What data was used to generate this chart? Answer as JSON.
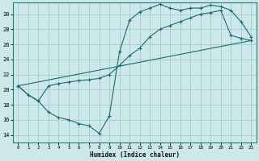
{
  "title": "",
  "xlabel": "Humidex (Indice chaleur)",
  "bg_color": "#cce8ea",
  "grid_color": "#aacfcf",
  "line_color": "#1a6b6b",
  "xlim": [
    -0.5,
    23.5
  ],
  "ylim": [
    13.0,
    31.5
  ],
  "xticks": [
    0,
    1,
    2,
    3,
    4,
    5,
    6,
    7,
    8,
    9,
    10,
    11,
    12,
    13,
    14,
    15,
    16,
    17,
    18,
    19,
    20,
    21,
    22,
    23
  ],
  "yticks": [
    14,
    16,
    18,
    20,
    22,
    24,
    26,
    28,
    30
  ],
  "line1_x": [
    0,
    1,
    2,
    3,
    4,
    5,
    6,
    7,
    8,
    9,
    10,
    11,
    12,
    13,
    14,
    15,
    16,
    17,
    18,
    19,
    20,
    21,
    22,
    23
  ],
  "line1_y": [
    20.5,
    19.3,
    18.5,
    17.0,
    16.3,
    16.0,
    15.5,
    15.2,
    14.2,
    16.5,
    25.0,
    29.2,
    30.3,
    30.8,
    31.3,
    30.8,
    30.5,
    30.8,
    30.8,
    31.2,
    31.0,
    30.5,
    29.0,
    27.0
  ],
  "line2_x": [
    0,
    1,
    2,
    3,
    4,
    5,
    6,
    7,
    8,
    9,
    10,
    11,
    12,
    13,
    14,
    15,
    16,
    17,
    18,
    19,
    20,
    21,
    22,
    23
  ],
  "line2_y": [
    20.5,
    19.3,
    18.5,
    20.5,
    20.8,
    21.0,
    21.2,
    21.3,
    21.5,
    22.0,
    23.2,
    24.5,
    25.5,
    27.0,
    28.0,
    28.5,
    29.0,
    29.5,
    30.0,
    30.2,
    30.5,
    27.2,
    26.8,
    26.5
  ],
  "line3_x": [
    0,
    23
  ],
  "line3_y": [
    20.5,
    26.5
  ]
}
